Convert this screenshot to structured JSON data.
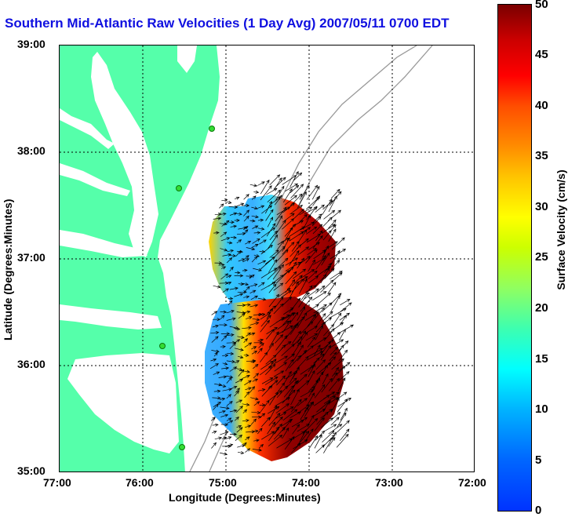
{
  "title": "Southern Mid-Atlantic Raw Velocities (1 Day Avg) 2007/05/11 0700 EDT",
  "xaxis": {
    "label": "Longitude (Degrees:Minutes)",
    "ticks": [
      "77:00",
      "76:00",
      "75:00",
      "74:00",
      "73:00",
      "72:00"
    ]
  },
  "yaxis": {
    "label": "Latitude (Degrees:Minutes)",
    "ticks": [
      "39:00",
      "38:00",
      "37:00",
      "36:00",
      "35:00"
    ]
  },
  "colorbar": {
    "label": "Surface Velocity (cm/s)",
    "ticks": [
      "50",
      "45",
      "40",
      "35",
      "30",
      "25",
      "20",
      "15",
      "10",
      "5",
      "0"
    ],
    "range": [
      0,
      50
    ]
  },
  "map": {
    "lon_range": [
      -77,
      -72
    ],
    "lat_range": [
      35,
      39
    ],
    "land_color": "#55ffaa",
    "bathymetry_color": "#999999",
    "station_color": "#33dd33",
    "grid": true
  }
}
